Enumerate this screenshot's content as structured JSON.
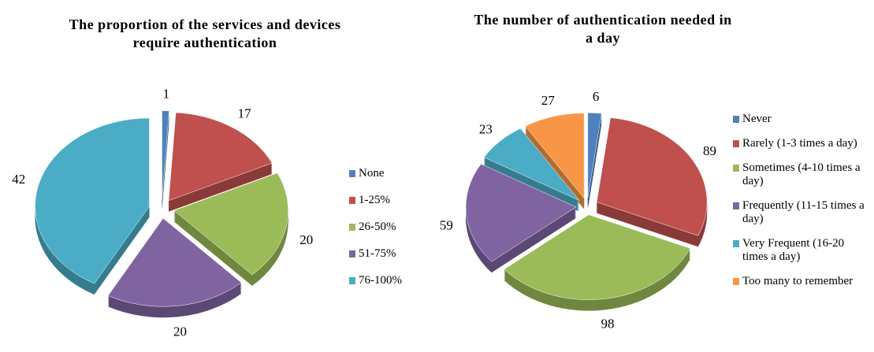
{
  "chart_data": [
    {
      "type": "pie",
      "title": "The proportion  of the services and devices require authentication",
      "categories": [
        "None",
        "1-25%",
        "26-50%",
        "51-75%",
        "76-100%"
      ],
      "values": [
        1,
        17,
        20,
        20,
        42
      ],
      "colors": [
        "#4f81bd",
        "#c0504d",
        "#9bbb59",
        "#8064a2",
        "#4bacc6"
      ],
      "legend": "right"
    },
    {
      "type": "pie",
      "title": "The number  of  authentication  needed in a day",
      "categories": [
        "Never",
        "Rarely (1-3 times a day)",
        "Sometimes (4-10 times a day)",
        "Frequently (11-15 times a day)",
        "Very Frequent (16-20 times a day)",
        "Too many to remember"
      ],
      "values": [
        6,
        89,
        98,
        59,
        23,
        27
      ],
      "colors": [
        "#4f81bd",
        "#c0504d",
        "#9bbb59",
        "#8064a2",
        "#4bacc6",
        "#f79646"
      ],
      "legend": "right"
    }
  ]
}
